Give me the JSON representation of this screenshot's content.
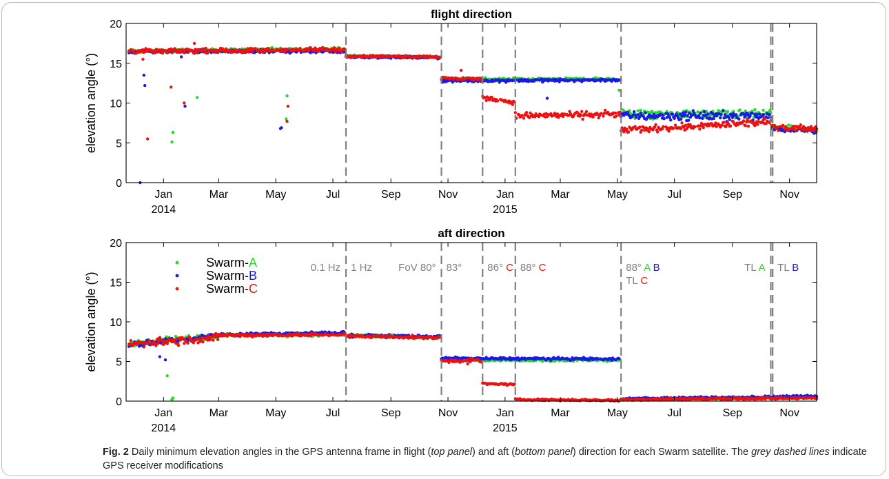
{
  "colors": {
    "A": "#22dd22",
    "B": "#1a1ae6",
    "C": "#ee1111",
    "grey": "#808080"
  },
  "chart_data": [
    {
      "type": "scatter",
      "title": "flight direction",
      "ylabel": "elevation angle (°)",
      "ylim": [
        0,
        20
      ],
      "yticks": [
        "0",
        "5",
        "10",
        "15",
        "20"
      ],
      "xlim": [
        "2013-11-22",
        "2015-11-30"
      ],
      "xticks": [
        {
          "date": "2014-01-01",
          "label": "Jan"
        },
        {
          "date": "2014-03-01",
          "label": "Mar"
        },
        {
          "date": "2014-05-01",
          "label": "May"
        },
        {
          "date": "2014-07-01",
          "label": "Jul"
        },
        {
          "date": "2014-09-01",
          "label": "Sep"
        },
        {
          "date": "2014-11-01",
          "label": "Nov"
        },
        {
          "date": "2015-01-01",
          "label": "Jan"
        },
        {
          "date": "2015-03-01",
          "label": "Mar"
        },
        {
          "date": "2015-05-01",
          "label": "May"
        },
        {
          "date": "2015-07-01",
          "label": "Jul"
        },
        {
          "date": "2015-09-01",
          "label": "Sep"
        },
        {
          "date": "2015-11-01",
          "label": "Nov"
        }
      ],
      "year_labels": [
        {
          "date": "2014-01-01",
          "label": "2014"
        },
        {
          "date": "2015-01-01",
          "label": "2015"
        }
      ],
      "grid": false,
      "dashed_lines": [
        "2014-07-15",
        "2014-10-25",
        "2014-12-08",
        "2015-01-12",
        "2015-05-05",
        "2015-10-12",
        "2015-10-14"
      ],
      "series": [
        {
          "name": "Swarm-A",
          "color_key": "A",
          "segments": [
            {
              "from": "2013-11-25",
              "to": "2014-07-14",
              "y": [
                16.5,
                16.8
              ],
              "noise": 0.22
            },
            {
              "from": "2014-07-15",
              "to": "2014-10-24",
              "y": [
                15.9,
                15.8
              ],
              "noise": 0.15
            },
            {
              "from": "2014-10-25",
              "to": "2015-05-04",
              "y": [
                13.0,
                13.0
              ],
              "noise": 0.2
            },
            {
              "from": "2015-05-05",
              "to": "2015-10-12",
              "y": [
                8.6,
                8.6
              ],
              "noise": 0.55
            },
            {
              "from": "2015-10-13",
              "to": "2015-11-30",
              "y": [
                7.0,
                6.6
              ],
              "noise": 0.35
            }
          ],
          "outliers": [
            [
              "2014-01-11",
              6.3
            ],
            [
              "2014-01-10",
              5.1
            ],
            [
              "2014-02-06",
              10.7
            ],
            [
              "2014-05-13",
              10.9
            ],
            [
              "2014-05-12",
              8.0
            ],
            [
              "2015-05-03",
              11.6
            ]
          ]
        },
        {
          "name": "Swarm-B",
          "color_key": "B",
          "segments": [
            {
              "from": "2013-11-25",
              "to": "2014-07-14",
              "y": [
                16.5,
                16.5
              ],
              "noise": 0.22
            },
            {
              "from": "2014-07-15",
              "to": "2014-10-24",
              "y": [
                15.8,
                15.7
              ],
              "noise": 0.15
            },
            {
              "from": "2014-10-25",
              "to": "2015-05-04",
              "y": [
                12.8,
                12.9
              ],
              "noise": 0.2
            },
            {
              "from": "2015-05-05",
              "to": "2015-10-12",
              "y": [
                8.4,
                8.4
              ],
              "noise": 0.6
            },
            {
              "from": "2015-10-13",
              "to": "2015-11-30",
              "y": [
                6.8,
                6.5
              ],
              "noise": 0.35
            }
          ],
          "outliers": [
            [
              "2013-12-07",
              0.0
            ],
            [
              "2013-12-11",
              13.5
            ],
            [
              "2013-12-12",
              12.2
            ],
            [
              "2014-01-20",
              15.8
            ],
            [
              "2014-01-24",
              9.6
            ],
            [
              "2014-05-06",
              6.8
            ],
            [
              "2014-05-07",
              6.9
            ],
            [
              "2015-02-15",
              10.6
            ]
          ]
        },
        {
          "name": "Swarm-C",
          "color_key": "C",
          "segments": [
            {
              "from": "2013-11-25",
              "to": "2014-07-14",
              "y": [
                16.5,
                16.7
              ],
              "noise": 0.3
            },
            {
              "from": "2014-07-15",
              "to": "2014-10-24",
              "y": [
                15.9,
                15.8
              ],
              "noise": 0.15
            },
            {
              "from": "2014-10-25",
              "to": "2014-12-07",
              "y": [
                13.1,
                13.0
              ],
              "noise": 0.22
            },
            {
              "from": "2014-12-08",
              "to": "2015-01-11",
              "y": [
                10.7,
                10.1
              ],
              "noise": 0.3
            },
            {
              "from": "2015-01-12",
              "to": "2015-05-04",
              "y": [
                8.4,
                8.6
              ],
              "noise": 0.45
            },
            {
              "from": "2015-05-05",
              "to": "2015-10-12",
              "y": [
                6.6,
                7.6
              ],
              "noise": 0.45
            },
            {
              "from": "2015-10-13",
              "to": "2015-11-30",
              "y": [
                7.0,
                6.8
              ],
              "noise": 0.35
            }
          ],
          "outliers": [
            [
              "2013-12-10",
              15.5
            ],
            [
              "2013-12-15",
              5.5
            ],
            [
              "2014-01-09",
              12.0
            ],
            [
              "2014-01-23",
              10.0
            ],
            [
              "2014-05-14",
              9.6
            ],
            [
              "2014-05-13",
              7.7
            ],
            [
              "2014-02-03",
              17.5
            ],
            [
              "2014-11-15",
              14.1
            ]
          ]
        }
      ]
    },
    {
      "type": "scatter",
      "title": "aft direction",
      "ylabel": "elevation angle (°)",
      "ylim": [
        0,
        20
      ],
      "yticks": [
        "0",
        "5",
        "10",
        "15",
        "20"
      ],
      "xlim": [
        "2013-11-22",
        "2015-11-30"
      ],
      "xticks": [
        {
          "date": "2014-01-01",
          "label": "Jan"
        },
        {
          "date": "2014-03-01",
          "label": "Mar"
        },
        {
          "date": "2014-05-01",
          "label": "May"
        },
        {
          "date": "2014-07-01",
          "label": "Jul"
        },
        {
          "date": "2014-09-01",
          "label": "Sep"
        },
        {
          "date": "2014-11-01",
          "label": "Nov"
        },
        {
          "date": "2015-01-01",
          "label": "Jan"
        },
        {
          "date": "2015-03-01",
          "label": "Mar"
        },
        {
          "date": "2015-05-01",
          "label": "May"
        },
        {
          "date": "2015-07-01",
          "label": "Jul"
        },
        {
          "date": "2015-09-01",
          "label": "Sep"
        },
        {
          "date": "2015-11-01",
          "label": "Nov"
        }
      ],
      "year_labels": [
        {
          "date": "2014-01-01",
          "label": "2014"
        },
        {
          "date": "2015-01-01",
          "label": "2015"
        }
      ],
      "grid": false,
      "dashed_lines": [
        "2014-07-15",
        "2014-10-25",
        "2014-12-08",
        "2015-01-12",
        "2015-05-05",
        "2015-10-12",
        "2015-10-14"
      ],
      "legend": {
        "placement": "upper-left",
        "entries": [
          {
            "prefix": "Swarm-",
            "suffix": "A",
            "color_key": "A"
          },
          {
            "prefix": "Swarm-",
            "suffix": "B",
            "color_key": "B"
          },
          {
            "prefix": "Swarm-",
            "suffix": "C",
            "color_key": "C"
          }
        ]
      },
      "annotations": [
        {
          "date": "2014-07-15",
          "row": 0,
          "left": [
            {
              "t": "0.1 Hz",
              "c": "grey"
            }
          ],
          "right": [
            {
              "t": "1 Hz",
              "c": "grey"
            }
          ]
        },
        {
          "date": "2014-10-25",
          "row": 0,
          "left": [
            {
              "t": "FoV 80°",
              "c": "grey"
            }
          ],
          "right": [
            {
              "t": "83°",
              "c": "grey"
            }
          ]
        },
        {
          "date": "2014-12-08",
          "row": 0,
          "right": [
            {
              "t": "86° ",
              "c": "grey"
            },
            {
              "t": "C",
              "c": "C"
            }
          ]
        },
        {
          "date": "2015-01-12",
          "row": 0,
          "right": [
            {
              "t": "88° ",
              "c": "grey"
            },
            {
              "t": "C",
              "c": "C"
            }
          ]
        },
        {
          "date": "2015-05-05",
          "row": 0,
          "right": [
            {
              "t": "88° ",
              "c": "grey"
            },
            {
              "t": "A",
              "c": "A"
            },
            {
              "t": " B",
              "c": "B"
            }
          ]
        },
        {
          "date": "2015-05-05",
          "row": 1,
          "right": [
            {
              "t": "TL ",
              "c": "grey"
            },
            {
              "t": "C",
              "c": "C"
            }
          ]
        },
        {
          "date": "2015-10-12",
          "row": 0,
          "left": [
            {
              "t": "TL ",
              "c": "grey"
            },
            {
              "t": "A",
              "c": "A"
            }
          ]
        },
        {
          "date": "2015-10-14",
          "row": 0,
          "right": [
            {
              "t": "TL ",
              "c": "grey"
            },
            {
              "t": "B",
              "c": "B"
            }
          ]
        }
      ],
      "series": [
        {
          "name": "Swarm-A",
          "color_key": "A",
          "segments": [
            {
              "from": "2013-11-25",
              "to": "2014-03-01",
              "y": [
                7.3,
                8.2
              ],
              "noise": 0.45
            },
            {
              "from": "2014-03-02",
              "to": "2014-07-14",
              "y": [
                8.3,
                8.4
              ],
              "noise": 0.2
            },
            {
              "from": "2014-07-15",
              "to": "2014-10-24",
              "y": [
                8.3,
                8.0
              ],
              "noise": 0.2
            },
            {
              "from": "2014-10-25",
              "to": "2015-05-04",
              "y": [
                5.2,
                5.2
              ],
              "noise": 0.18
            },
            {
              "from": "2015-05-05",
              "to": "2015-11-30",
              "y": [
                0.2,
                0.5
              ],
              "noise": 0.15
            }
          ],
          "outliers": [
            [
              "2014-01-11",
              0.4
            ],
            [
              "2014-01-10",
              0.2
            ],
            [
              "2014-01-05",
              3.2
            ]
          ]
        },
        {
          "name": "Swarm-B",
          "color_key": "B",
          "segments": [
            {
              "from": "2013-11-25",
              "to": "2014-03-01",
              "y": [
                7.2,
                8.2
              ],
              "noise": 0.45
            },
            {
              "from": "2014-03-02",
              "to": "2014-07-14",
              "y": [
                8.4,
                8.6
              ],
              "noise": 0.2
            },
            {
              "from": "2014-07-15",
              "to": "2014-10-24",
              "y": [
                8.3,
                8.1
              ],
              "noise": 0.2
            },
            {
              "from": "2014-10-25",
              "to": "2015-05-04",
              "y": [
                5.4,
                5.3
              ],
              "noise": 0.18
            },
            {
              "from": "2015-05-05",
              "to": "2015-11-30",
              "y": [
                0.3,
                0.6
              ],
              "noise": 0.15
            }
          ],
          "outliers": [
            [
              "2013-12-28",
              5.6
            ],
            [
              "2014-01-03",
              5.2
            ]
          ]
        },
        {
          "name": "Swarm-C",
          "color_key": "C",
          "segments": [
            {
              "from": "2013-11-25",
              "to": "2014-03-01",
              "y": [
                7.2,
                8.0
              ],
              "noise": 0.55
            },
            {
              "from": "2014-03-02",
              "to": "2014-07-14",
              "y": [
                8.3,
                8.4
              ],
              "noise": 0.2
            },
            {
              "from": "2014-07-15",
              "to": "2014-10-24",
              "y": [
                8.2,
                8.0
              ],
              "noise": 0.2
            },
            {
              "from": "2014-10-25",
              "to": "2014-12-07",
              "y": [
                5.1,
                5.1
              ],
              "noise": 0.25
            },
            {
              "from": "2014-12-08",
              "to": "2015-01-11",
              "y": [
                2.2,
                2.1
              ],
              "noise": 0.12
            },
            {
              "from": "2015-01-12",
              "to": "2015-05-04",
              "y": [
                0.2,
                0.1
              ],
              "noise": 0.12
            },
            {
              "from": "2015-05-05",
              "to": "2015-11-30",
              "y": [
                0.2,
                0.4
              ],
              "noise": 0.15
            }
          ],
          "outliers": [
            [
              "2014-11-22",
              4.7
            ]
          ]
        }
      ]
    }
  ],
  "caption": {
    "fig_label": "Fig. 2",
    "text_parts": [
      {
        "t": "  Daily minimum elevation angles in the GPS antenna frame in flight (",
        "i": false
      },
      {
        "t": "top panel",
        "i": true
      },
      {
        "t": ") and aft (",
        "i": false
      },
      {
        "t": "bottom panel",
        "i": true
      },
      {
        "t": ") direction for each Swarm satellite. The ",
        "i": false
      },
      {
        "t": "grey dashed lines",
        "i": true
      },
      {
        "t": " indicate GPS receiver modifications",
        "i": false
      }
    ]
  }
}
